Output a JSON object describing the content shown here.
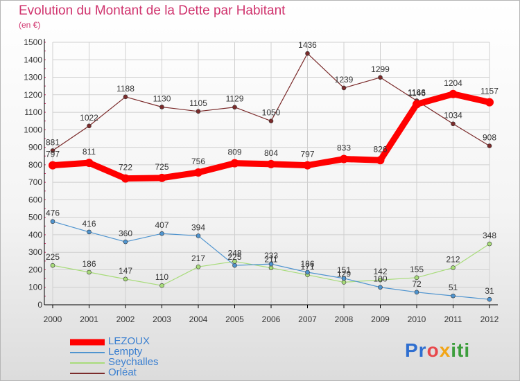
{
  "title": "Evolution du Montant de la Dette par Habitant",
  "unit": "(en €)",
  "logo": "Proxiti",
  "colors": {
    "title": "#d0346e",
    "axis": "#000000",
    "grid": "#cfcfcf"
  },
  "chart_data": {
    "type": "line",
    "title": "Evolution du Montant de la Dette par Habitant",
    "subtitle": "(en €)",
    "xlabel": "",
    "ylabel": "",
    "x": [
      "2000",
      "2001",
      "2002",
      "2003",
      "2004",
      "2005",
      "2006",
      "2007",
      "2008",
      "2009",
      "2010",
      "2011",
      "2012"
    ],
    "ylim": [
      0,
      1500
    ],
    "yticks": [
      "0",
      "100",
      "200",
      "300",
      "400",
      "500",
      "600",
      "700",
      "800",
      "900",
      "1000",
      "1100",
      "1200",
      "1300",
      "1400",
      "1500"
    ],
    "grid": true,
    "legend_position": "bottom-left",
    "series": [
      {
        "name": "LEZOUX",
        "color": "#ff0000",
        "values": [
          797,
          811,
          722,
          725,
          756,
          809,
          804,
          797,
          833,
          826,
          1146,
          1204,
          1157
        ],
        "labels": [
          "797",
          "811",
          "722",
          "725",
          "756",
          "809",
          "804",
          "797",
          "833",
          "826",
          "1146",
          "1204",
          "1157"
        ]
      },
      {
        "name": "Lempty",
        "color": "#4f94cf",
        "values": [
          476,
          416,
          360,
          407,
          394,
          225,
          233,
          186,
          151,
          100,
          72,
          51,
          31
        ],
        "labels": [
          "476",
          "416",
          "360",
          "407",
          "394",
          "225",
          "233",
          "186",
          "151",
          "100",
          "72",
          "51",
          "31"
        ]
      },
      {
        "name": "Seychalles",
        "color": "#a8dc7a",
        "values": [
          225,
          186,
          147,
          110,
          217,
          248,
          211,
          171,
          129,
          142,
          155,
          212,
          348
        ],
        "labels": [
          "225",
          "186",
          "147",
          "110",
          "217",
          "248",
          "211",
          "171",
          "129",
          "142",
          "155",
          "212",
          "348"
        ]
      },
      {
        "name": "Orléat",
        "color": "#7b2b2b",
        "values": [
          881,
          1022,
          1188,
          1130,
          1105,
          1129,
          1050,
          1436,
          1239,
          1299,
          1166,
          1034,
          908
        ],
        "labels": [
          "881",
          "1022",
          "1188",
          "1130",
          "1105",
          "1129",
          "1050",
          "1436",
          "1239",
          "1299",
          "1166",
          "1034",
          "908"
        ]
      }
    ]
  }
}
